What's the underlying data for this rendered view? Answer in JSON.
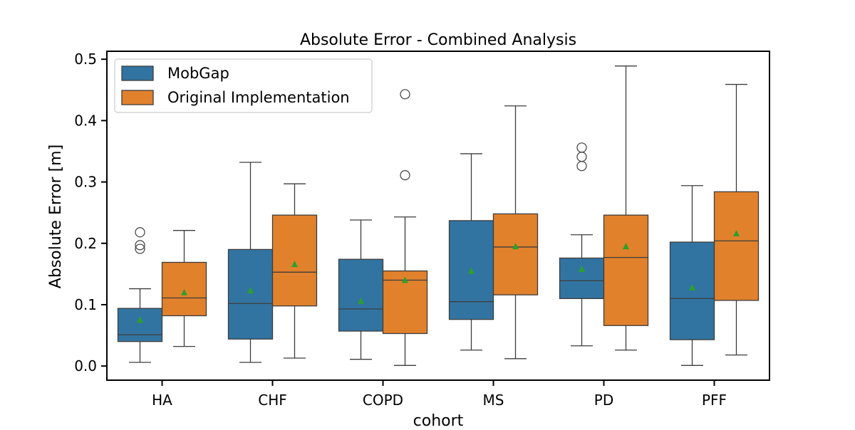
{
  "chart_data": {
    "type": "box",
    "title": "Absolute Error - Combined Analysis",
    "xlabel": "cohort",
    "ylabel": "Absolute Error [m]",
    "ylim": [
      -0.023,
      0.513
    ],
    "yticks": [
      0.0,
      0.1,
      0.2,
      0.3,
      0.4,
      0.5
    ],
    "ytick_labels": [
      "0.0",
      "0.1",
      "0.2",
      "0.3",
      "0.4",
      "0.5"
    ],
    "categories": [
      "HA",
      "CHF",
      "COPD",
      "MS",
      "PD",
      "PFF"
    ],
    "grid": false,
    "legend_position": "upper-left",
    "mean_marker_color": "#2ca02c",
    "series": [
      {
        "name": "MobGap",
        "color": "#3274a1",
        "boxes": [
          {
            "whisker_low": 0.006,
            "q1": 0.04,
            "median": 0.051,
            "q3": 0.094,
            "whisker_high": 0.126,
            "mean": 0.075,
            "outliers": [
              0.191,
              0.197,
              0.218
            ]
          },
          {
            "whisker_low": 0.006,
            "q1": 0.044,
            "median": 0.102,
            "q3": 0.19,
            "whisker_high": 0.332,
            "mean": 0.123,
            "outliers": []
          },
          {
            "whisker_low": 0.011,
            "q1": 0.057,
            "median": 0.093,
            "q3": 0.174,
            "whisker_high": 0.238,
            "mean": 0.106,
            "outliers": []
          },
          {
            "whisker_low": 0.026,
            "q1": 0.076,
            "median": 0.105,
            "q3": 0.237,
            "whisker_high": 0.346,
            "mean": 0.155,
            "outliers": []
          },
          {
            "whisker_low": 0.033,
            "q1": 0.11,
            "median": 0.139,
            "q3": 0.176,
            "whisker_high": 0.214,
            "mean": 0.158,
            "outliers": [
              0.326,
              0.341,
              0.356
            ]
          },
          {
            "whisker_low": 0.001,
            "q1": 0.043,
            "median": 0.11,
            "q3": 0.202,
            "whisker_high": 0.294,
            "mean": 0.128,
            "outliers": []
          }
        ]
      },
      {
        "name": "Original Implementation",
        "color": "#e1812c",
        "boxes": [
          {
            "whisker_low": 0.032,
            "q1": 0.082,
            "median": 0.111,
            "q3": 0.169,
            "whisker_high": 0.221,
            "mean": 0.12,
            "outliers": []
          },
          {
            "whisker_low": 0.013,
            "q1": 0.098,
            "median": 0.153,
            "q3": 0.246,
            "whisker_high": 0.297,
            "mean": 0.166,
            "outliers": []
          },
          {
            "whisker_low": 0.001,
            "q1": 0.053,
            "median": 0.14,
            "q3": 0.155,
            "whisker_high": 0.243,
            "mean": 0.14,
            "outliers": [
              0.311,
              0.443
            ]
          },
          {
            "whisker_low": 0.012,
            "q1": 0.116,
            "median": 0.194,
            "q3": 0.248,
            "whisker_high": 0.424,
            "mean": 0.195,
            "outliers": []
          },
          {
            "whisker_low": 0.026,
            "q1": 0.066,
            "median": 0.177,
            "q3": 0.246,
            "whisker_high": 0.489,
            "mean": 0.195,
            "outliers": []
          },
          {
            "whisker_low": 0.018,
            "q1": 0.107,
            "median": 0.204,
            "q3": 0.284,
            "whisker_high": 0.459,
            "mean": 0.216,
            "outliers": []
          }
        ]
      }
    ]
  }
}
